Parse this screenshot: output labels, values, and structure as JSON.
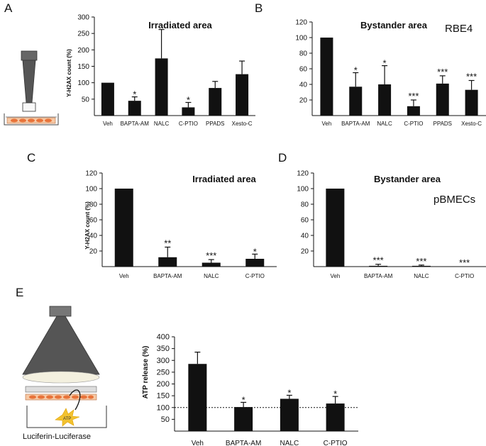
{
  "labels": {
    "A": "A",
    "B": "B",
    "C": "C",
    "D": "D",
    "E": "E",
    "rbe4": "RBE4",
    "pbmecs": "pBMECs",
    "luciferase": "Luciferin-Luciferase",
    "atp_icon_text": "ATP"
  },
  "colors": {
    "bar": "#111111",
    "lamp": "#555555",
    "cell": "#e8733a"
  },
  "icons": {
    "panel_a": "irradiation-lamp-icon",
    "panel_e": "luminometer-lamp-icon",
    "atp": "atp-burst-icon"
  },
  "chart_data": [
    {
      "id": "A",
      "type": "bar",
      "title": "Irradiated area",
      "ylabel": "Y-H2AX count (%)",
      "ylim": [
        0,
        300
      ],
      "yticks": [
        50,
        100,
        150,
        200,
        250,
        300
      ],
      "categories": [
        "Veh",
        "BAPTA-AM",
        "NALC",
        "C-PTIO",
        "PPADS",
        "Xesto-C"
      ],
      "values": [
        100,
        45,
        174,
        25,
        84,
        126
      ],
      "errors": [
        0,
        12,
        88,
        15,
        20,
        40
      ],
      "significance": [
        "",
        "*",
        "",
        "*",
        "",
        ""
      ]
    },
    {
      "id": "B",
      "type": "bar",
      "title": "Bystander area",
      "ylabel": "",
      "ylim": [
        0,
        120
      ],
      "yticks": [
        20,
        40,
        60,
        80,
        100,
        120
      ],
      "categories": [
        "Veh",
        "BAPTA-AM",
        "NALC",
        "C-PTIO",
        "PPADS",
        "Xesto-C"
      ],
      "values": [
        100,
        37,
        40,
        12,
        41,
        33
      ],
      "errors": [
        0,
        18,
        24,
        8,
        10,
        12
      ],
      "significance": [
        "",
        "*",
        "*",
        "***",
        "***",
        "***"
      ]
    },
    {
      "id": "C",
      "type": "bar",
      "title": "Irradiated area",
      "ylabel": "Y-H2AX count (%)",
      "ylim": [
        0,
        120
      ],
      "yticks": [
        20,
        40,
        60,
        80,
        100,
        120
      ],
      "categories": [
        "Veh",
        "BAPTA-AM",
        "NALC",
        "C-PTIO"
      ],
      "values": [
        100,
        12,
        5,
        10
      ],
      "errors": [
        0,
        13,
        4,
        6
      ],
      "significance": [
        "",
        "**",
        "***",
        "*"
      ]
    },
    {
      "id": "D",
      "type": "bar",
      "title": "Bystander area",
      "ylabel": "",
      "ylim": [
        0,
        120
      ],
      "yticks": [
        20,
        40,
        60,
        80,
        100,
        120
      ],
      "categories": [
        "Veh",
        "BAPTA-AM",
        "NALC",
        "C-PTIO"
      ],
      "values": [
        100,
        1,
        1,
        0
      ],
      "errors": [
        0,
        2,
        1,
        0
      ],
      "significance": [
        "",
        "***",
        "***",
        "***"
      ]
    },
    {
      "id": "E",
      "type": "bar",
      "title": "",
      "ylabel": "ATP release (%)",
      "ylim": [
        0,
        400
      ],
      "yticks": [
        50,
        100,
        150,
        200,
        250,
        300,
        350,
        400
      ],
      "categories": [
        "Veh",
        "BAPTA-AM",
        "NALC",
        "C-PTIO"
      ],
      "values": [
        285,
        102,
        137,
        117
      ],
      "errors": [
        50,
        20,
        15,
        30
      ],
      "significance": [
        "",
        "*",
        "*",
        "*"
      ],
      "reference_line": 100
    }
  ]
}
